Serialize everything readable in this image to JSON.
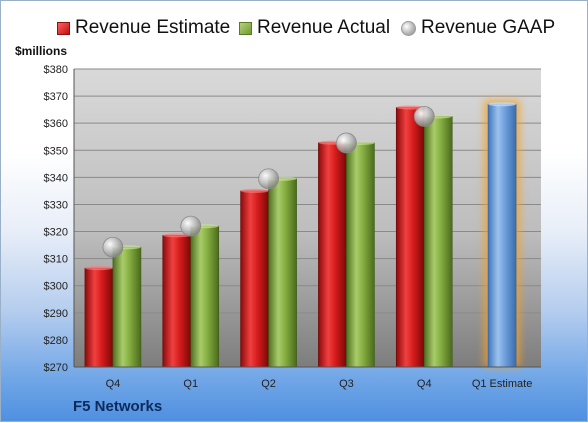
{
  "chart_data": {
    "type": "bar",
    "categories": [
      "Q4",
      "Q1",
      "Q2",
      "Q3",
      "Q4",
      "Q1 Estimate"
    ],
    "series": [
      {
        "name": "Revenue Estimate",
        "values": [
          306.5,
          318.6,
          335.0,
          352.8,
          365.8,
          null
        ],
        "color": "#d01818"
      },
      {
        "name": "Revenue Actual",
        "values": [
          314.2,
          322.0,
          339.5,
          352.7,
          362.5,
          null
        ],
        "color": "#7ca63a"
      },
      {
        "name": "Revenue GAAP",
        "values": [
          314.2,
          322.0,
          339.5,
          352.7,
          362.5,
          null
        ],
        "color": "#a8a8a8"
      }
    ],
    "projection": {
      "category": "Q1 Estimate",
      "value": 367.0,
      "color": "#6fa0dc",
      "glow": "#f5a020"
    },
    "ylabel": "$millions",
    "ylim": [
      270,
      380
    ],
    "yticks": [
      270,
      280,
      290,
      300,
      310,
      320,
      330,
      340,
      350,
      360,
      370,
      380
    ],
    "ytick_labels": [
      "$270",
      "$280",
      "$290",
      "$300",
      "$310",
      "$320",
      "$330",
      "$340",
      "$350",
      "$360",
      "$370",
      "$380"
    ],
    "grid": true,
    "legend_position": "top"
  },
  "company": "F5 Networks"
}
